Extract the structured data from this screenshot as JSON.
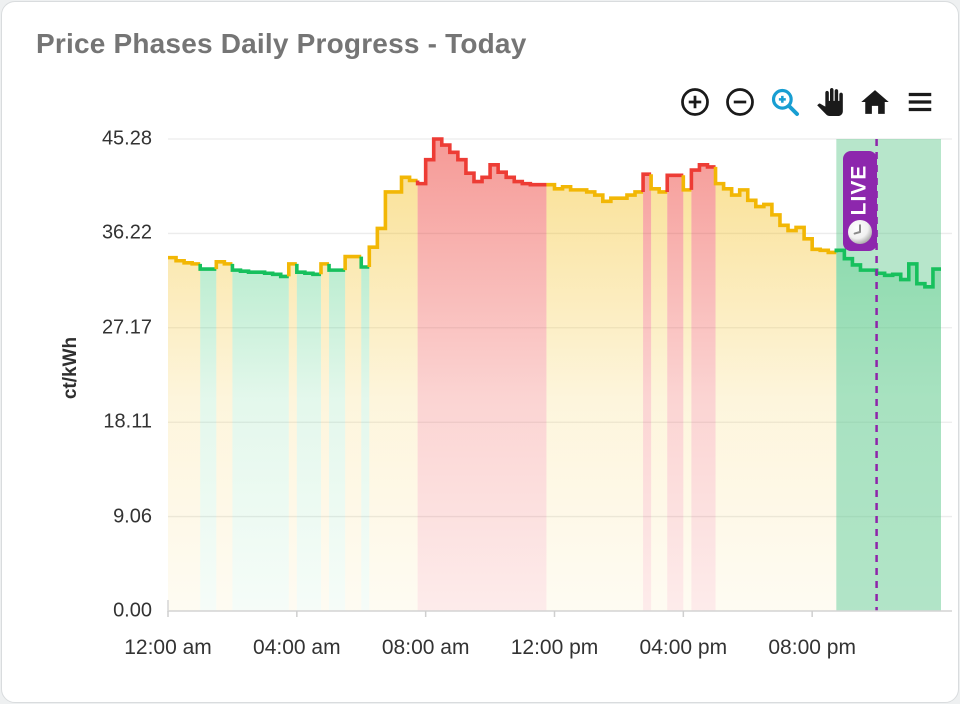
{
  "card": {
    "title": "Price Phases Daily Progress - Today"
  },
  "toolbar": {
    "buttons": [
      {
        "name": "zoom-in-button",
        "icon": "circle-plus-icon",
        "color": "#1a1a1a"
      },
      {
        "name": "zoom-out-button",
        "icon": "circle-minus-icon",
        "color": "#1a1a1a"
      },
      {
        "name": "zoom-mode-button",
        "icon": "magnifier-plus-icon",
        "color": "#189ed2"
      },
      {
        "name": "pan-mode-button",
        "icon": "hand-icon",
        "color": "#1a1a1a"
      },
      {
        "name": "reset-axes-button",
        "icon": "home-icon",
        "color": "#1a1a1a"
      },
      {
        "name": "menu-button",
        "icon": "hamburger-icon",
        "color": "#1a1a1a"
      }
    ]
  },
  "chart_data": {
    "type": "area",
    "subtype": "step-line-with-gradient-fill",
    "title": "Price Phases Daily Progress - Today",
    "xlabel": "",
    "ylabel": "ct/kWh",
    "ylim": [
      0,
      45.28
    ],
    "yticks": [
      {
        "label": "45.28",
        "value": 45.28
      },
      {
        "label": "36.22",
        "value": 36.22
      },
      {
        "label": "27.17",
        "value": 27.17
      },
      {
        "label": "18.11",
        "value": 18.11
      },
      {
        "label": "9.06",
        "value": 9.06
      },
      {
        "label": "0.00",
        "value": 0.0
      }
    ],
    "x_range_hours": [
      0,
      24
    ],
    "xticks": [
      {
        "label": "12:00 am",
        "hour": 0
      },
      {
        "label": "04:00 am",
        "hour": 4
      },
      {
        "label": "08:00 am",
        "hour": 8
      },
      {
        "label": "12:00 pm",
        "hour": 12
      },
      {
        "label": "04:00 pm",
        "hour": 16
      },
      {
        "label": "08:00 pm",
        "hour": 20
      }
    ],
    "grid": true,
    "legend": "none",
    "phase_colors": {
      "g": "#17c05d",
      "m": "#f2b705",
      "r": "#ed3c35"
    },
    "phase_names": {
      "g": "cheap-green",
      "m": "medium-yellow",
      "r": "expensive-red"
    },
    "future_window_hours": [
      20.75,
      24
    ],
    "future_fill": "rgba(95,200,140,0.45)",
    "live_marker": {
      "label": "LIVE",
      "time_hour": 22.0,
      "color": "#8d27ad",
      "line_color": "#8e24aa"
    },
    "series_name": "price-ct-per-kwh-15min-steps",
    "series": [
      [
        0,
        33.9,
        "m"
      ],
      [
        0.25,
        33.6,
        "m"
      ],
      [
        0.5,
        33.4,
        "m"
      ],
      [
        0.75,
        33.3,
        "m"
      ],
      [
        1,
        32.8,
        "g"
      ],
      [
        1.25,
        32.8,
        "g"
      ],
      [
        1.5,
        33.5,
        "m"
      ],
      [
        1.75,
        33.3,
        "m"
      ],
      [
        2,
        32.7,
        "g"
      ],
      [
        2.25,
        32.6,
        "g"
      ],
      [
        2.5,
        32.5,
        "g"
      ],
      [
        2.75,
        32.5,
        "g"
      ],
      [
        3,
        32.4,
        "g"
      ],
      [
        3.25,
        32.3,
        "g"
      ],
      [
        3.5,
        32.1,
        "g"
      ],
      [
        3.75,
        33.3,
        "m"
      ],
      [
        4,
        32.5,
        "g"
      ],
      [
        4.25,
        32.4,
        "g"
      ],
      [
        4.5,
        32.3,
        "g"
      ],
      [
        4.75,
        33.3,
        "m"
      ],
      [
        5,
        32.7,
        "g"
      ],
      [
        5.25,
        32.7,
        "g"
      ],
      [
        5.5,
        34,
        "m"
      ],
      [
        5.75,
        34,
        "m"
      ],
      [
        6,
        33,
        "g"
      ],
      [
        6.25,
        34.9,
        "m"
      ],
      [
        6.5,
        36.7,
        "m"
      ],
      [
        6.75,
        40.2,
        "m"
      ],
      [
        7,
        40.2,
        "m"
      ],
      [
        7.25,
        41.6,
        "m"
      ],
      [
        7.5,
        41.3,
        "m"
      ],
      [
        7.75,
        41,
        "r"
      ],
      [
        8,
        43.3,
        "r"
      ],
      [
        8.25,
        45.28,
        "r"
      ],
      [
        8.5,
        44.7,
        "r"
      ],
      [
        8.75,
        44,
        "r"
      ],
      [
        9,
        43.3,
        "r"
      ],
      [
        9.25,
        42,
        "r"
      ],
      [
        9.5,
        41.2,
        "r"
      ],
      [
        9.75,
        41.6,
        "r"
      ],
      [
        10,
        42.8,
        "r"
      ],
      [
        10.25,
        42.1,
        "r"
      ],
      [
        10.5,
        41.6,
        "r"
      ],
      [
        10.75,
        41.2,
        "r"
      ],
      [
        11,
        41,
        "r"
      ],
      [
        11.25,
        40.9,
        "r"
      ],
      [
        11.5,
        40.9,
        "r"
      ],
      [
        11.75,
        40.9,
        "m"
      ],
      [
        12,
        40.5,
        "m"
      ],
      [
        12.25,
        40.7,
        "m"
      ],
      [
        12.5,
        40.4,
        "m"
      ],
      [
        12.75,
        40.4,
        "m"
      ],
      [
        13,
        40.2,
        "m"
      ],
      [
        13.25,
        39.9,
        "m"
      ],
      [
        13.5,
        39.3,
        "m"
      ],
      [
        13.75,
        39.6,
        "m"
      ],
      [
        14,
        39.6,
        "m"
      ],
      [
        14.25,
        39.9,
        "m"
      ],
      [
        14.5,
        40.2,
        "m"
      ],
      [
        14.75,
        41.9,
        "r"
      ],
      [
        15,
        40.5,
        "m"
      ],
      [
        15.25,
        40.2,
        "m"
      ],
      [
        15.5,
        41.8,
        "r"
      ],
      [
        15.75,
        41.8,
        "r"
      ],
      [
        16,
        40.4,
        "m"
      ],
      [
        16.25,
        42.3,
        "r"
      ],
      [
        16.5,
        42.8,
        "r"
      ],
      [
        16.75,
        42.6,
        "r"
      ],
      [
        17,
        41,
        "m"
      ],
      [
        17.25,
        40.5,
        "m"
      ],
      [
        17.5,
        39.9,
        "m"
      ],
      [
        17.75,
        40.4,
        "m"
      ],
      [
        18,
        39.4,
        "m"
      ],
      [
        18.25,
        38.8,
        "m"
      ],
      [
        18.5,
        39,
        "m"
      ],
      [
        18.75,
        38,
        "m"
      ],
      [
        19,
        37,
        "m"
      ],
      [
        19.25,
        36.5,
        "m"
      ],
      [
        19.5,
        36.8,
        "m"
      ],
      [
        19.75,
        35.7,
        "m"
      ],
      [
        20,
        34.7,
        "m"
      ],
      [
        20.25,
        34.6,
        "m"
      ],
      [
        20.5,
        34.4,
        "m"
      ],
      [
        20.75,
        34.6,
        "g"
      ],
      [
        21,
        33.8,
        "g"
      ],
      [
        21.25,
        33.2,
        "g"
      ],
      [
        21.5,
        32.7,
        "g"
      ],
      [
        21.75,
        32.7,
        "g"
      ],
      [
        22,
        32.4,
        "g"
      ],
      [
        22.25,
        32.2,
        "g"
      ],
      [
        22.5,
        32.3,
        "g"
      ],
      [
        22.75,
        31.8,
        "g"
      ],
      [
        23,
        33.3,
        "g"
      ],
      [
        23.25,
        31.4,
        "g"
      ],
      [
        23.5,
        31.1,
        "g"
      ],
      [
        23.75,
        32.8,
        "g"
      ]
    ]
  }
}
